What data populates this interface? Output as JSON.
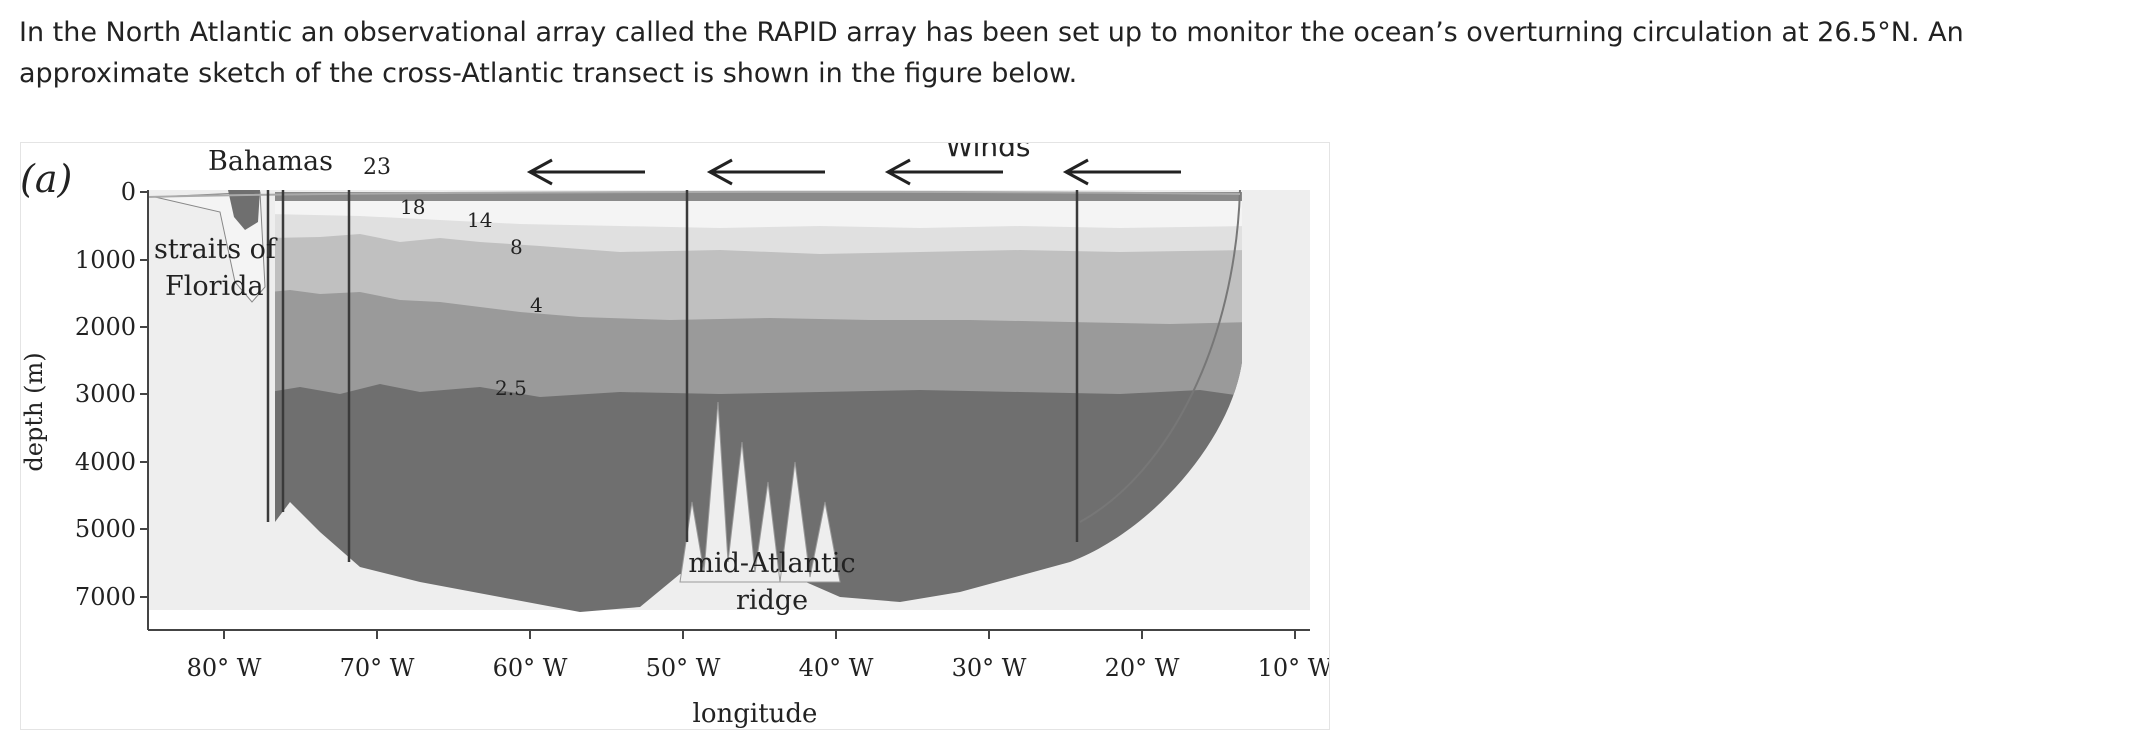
{
  "intro_text": "In the North Atlantic an observational array called the RAPID array has been set up to monitor the ocean’s overturning circulation at 26.5°N. An approximate sketch of the cross-Atlantic transect is shown in the figure below.",
  "figure": {
    "panel_label": "(a)",
    "y_axis_label": "depth (m)",
    "x_axis_label": "longitude",
    "y_ticks": [
      "0",
      "1000",
      "2000",
      "3000",
      "4000",
      "5000",
      "7000"
    ],
    "x_ticks": [
      "80° W",
      "70° W",
      "60° W",
      "50° W",
      "40° W",
      "30° W",
      "20° W",
      "10° W"
    ],
    "label_bahamas": "Bahamas",
    "label_straits_line1": "straits of",
    "label_straits_line2": "Florida",
    "label_ridge_line1": "mid-Atlantic",
    "label_ridge_line2": "ridge",
    "label_winds": "Winds",
    "contour_labels": [
      "23",
      "18",
      "14",
      "8",
      "4",
      "2.5"
    ],
    "wind_arrow_count": 4,
    "colors": {
      "background": "#eeeeee",
      "water_warm": "#f4f4f4",
      "water_mid": "#c0c0c0",
      "water_deep": "#9a9a9a",
      "water_bottom": "#6f6f6f",
      "mooring_line": "#3a3a3a"
    }
  }
}
